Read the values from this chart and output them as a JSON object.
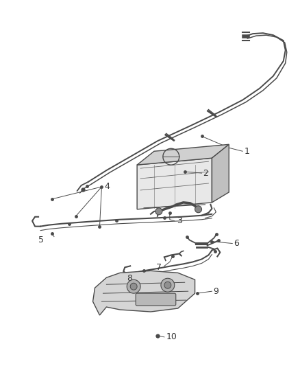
{
  "bg_color": "#ffffff",
  "line_color": "#4a4a4a",
  "label_color": "#333333",
  "parts": [
    1,
    2,
    3,
    4,
    5,
    6,
    7,
    8,
    9,
    10
  ]
}
